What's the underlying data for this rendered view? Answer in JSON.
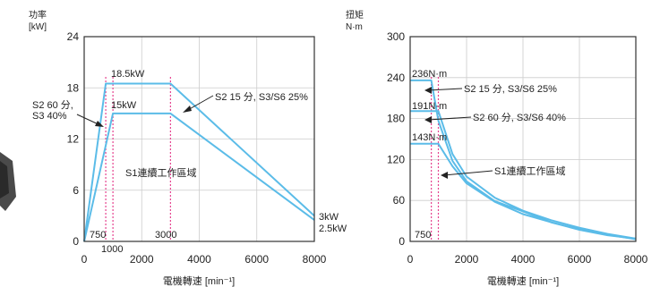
{
  "colors": {
    "curve": "#5bbce8",
    "zone": "#e6438f",
    "axis": "#333333",
    "grid": "#cccccc"
  },
  "chart_data": [
    {
      "type": "line",
      "ylabel_cn": "功率",
      "yunit": "[kW]",
      "xlabel": "電機轉速 [min⁻¹]",
      "xlim": [
        0,
        8000
      ],
      "ylim": [
        0,
        24
      ],
      "xticks": [
        "0",
        "2000",
        "4000",
        "6000",
        "8000"
      ],
      "yticks": [
        "0",
        "6",
        "12",
        "18",
        "24"
      ],
      "series": [
        {
          "name": "S2 15 分, S3/S6 25%",
          "x": [
            0,
            750,
            3000,
            8000
          ],
          "y": [
            0,
            18.5,
            18.5,
            3
          ]
        },
        {
          "name": "S2 60 分, S3 40%",
          "x": [
            0,
            1000,
            3000,
            8000
          ],
          "y": [
            0,
            15,
            15,
            2.5
          ]
        }
      ],
      "vlines": [
        750,
        1000,
        3000
      ],
      "labels": {
        "peak_high": "18.5kW",
        "peak_low": "15kW",
        "s2_15": "S2 15 分, S3/S6 25%",
        "s2_60_a": "S2 60 分,",
        "s2_60_b": "S3 40%",
        "s1": "S1連續工作區域",
        "end_high": "3kW",
        "end_low": "2.5kW",
        "v750": "750",
        "v1000": "1000",
        "v3000": "3000"
      }
    },
    {
      "type": "line",
      "ylabel_cn": "扭矩",
      "yunit": "N·m",
      "xlabel": "電機轉速 [min⁻¹]",
      "xlim": [
        0,
        8000
      ],
      "ylim": [
        0,
        300
      ],
      "xticks": [
        "0",
        "2000",
        "4000",
        "6000",
        "8000"
      ],
      "yticks": [
        "0",
        "60",
        "120",
        "180",
        "240",
        "300"
      ],
      "series": [
        {
          "name": "S2 15 分, S3/S6 25%",
          "x": [
            0,
            750,
            1000,
            1500,
            2000,
            3000,
            4000,
            5000,
            6000,
            7000,
            8000
          ],
          "y": [
            236,
            236,
            177,
            118,
            88,
            59,
            44,
            28,
            17,
            9,
            4
          ]
        },
        {
          "name": "S2 60 分, S3/S6 40%",
          "x": [
            0,
            1000,
            1500,
            2000,
            3000,
            4000,
            5000,
            6000,
            7000,
            8000
          ],
          "y": [
            191,
            191,
            128,
            95,
            64,
            45,
            31,
            20,
            11,
            4
          ]
        },
        {
          "name": "S1連續工作區域",
          "x": [
            0,
            1000,
            1500,
            2000,
            3000,
            4000,
            5000,
            6000,
            7000,
            8000
          ],
          "y": [
            143,
            143,
            110,
            85,
            58,
            40,
            28,
            18,
            10,
            3
          ]
        }
      ],
      "vlines": [
        750,
        1000
      ],
      "labels": {
        "t236": "236N·m",
        "t191": "191N·m",
        "t143": "143N·m",
        "s2_15": "S2 15 分, S3/S6 25%",
        "s2_60": "S2 60 分, S3/S6 40%",
        "s1": "S1連續工作區域",
        "v750": "750"
      }
    }
  ]
}
